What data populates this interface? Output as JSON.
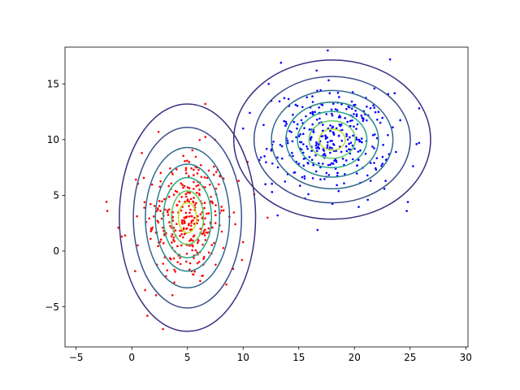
{
  "chart_data": {
    "type": "scatter",
    "title": "",
    "xlabel": "",
    "ylabel": "",
    "xlim": [
      -6.0,
      30.2
    ],
    "ylim": [
      -8.6,
      18.3
    ],
    "xticks": [
      -5,
      0,
      5,
      10,
      15,
      20,
      25,
      30
    ],
    "yticks": [
      -5,
      0,
      5,
      10,
      15
    ],
    "grid": false,
    "legend": "none",
    "clusters": [
      {
        "color": "#ff0000",
        "mean": [
          5.0,
          3.0
        ],
        "std": [
          1.8,
          3.0
        ],
        "count": 320,
        "contour_levels_sigma": [
          3.4,
          2.7,
          2.1,
          1.6,
          1.2,
          0.8,
          0.45
        ],
        "extra_points": [
          [
            -2.2,
            3.6
          ],
          [
            -1.2,
            2.1
          ],
          [
            -0.9,
            1.3
          ],
          [
            -0.6,
            1.4
          ],
          [
            0.3,
            -1.8
          ],
          [
            1.2,
            -3.5
          ],
          [
            1.4,
            -5.8
          ],
          [
            2.8,
            -7.0
          ],
          [
            8.5,
            -3.0
          ],
          [
            9.1,
            -1.6
          ],
          [
            9.9,
            -0.8
          ],
          [
            11.0,
            5.1
          ],
          [
            12.2,
            3.0
          ],
          [
            9.6,
            6.3
          ],
          [
            6.6,
            13.2
          ],
          [
            2.4,
            10.7
          ],
          [
            0.9,
            8.8
          ],
          [
            10.4,
            8.0
          ]
        ]
      },
      {
        "color": "#0000ff",
        "mean": [
          18.0,
          10.0
        ],
        "std": [
          2.6,
          2.1
        ],
        "count": 330,
        "contour_levels_sigma": [
          3.4,
          2.7,
          2.1,
          1.6,
          1.2,
          0.8,
          0.45
        ],
        "extra_points": [
          [
            10.0,
            11.0
          ],
          [
            10.6,
            12.4
          ],
          [
            11.6,
            8.4
          ],
          [
            12.0,
            6.0
          ],
          [
            12.6,
            5.3
          ],
          [
            13.1,
            3.2
          ],
          [
            13.4,
            16.9
          ],
          [
            17.6,
            18.0
          ],
          [
            23.2,
            17.2
          ],
          [
            24.7,
            3.6
          ],
          [
            24.8,
            4.4
          ],
          [
            12.3,
            15.0
          ],
          [
            14.0,
            6.9
          ],
          [
            22.8,
            6.3
          ],
          [
            21.2,
            4.6
          ],
          [
            16.6,
            16.2
          ]
        ]
      }
    ],
    "contour_colors": [
      "#3b2d80",
      "#3c4f8a",
      "#31688e",
      "#26828e",
      "#22a884",
      "#5ec962",
      "#bddf26"
    ]
  }
}
